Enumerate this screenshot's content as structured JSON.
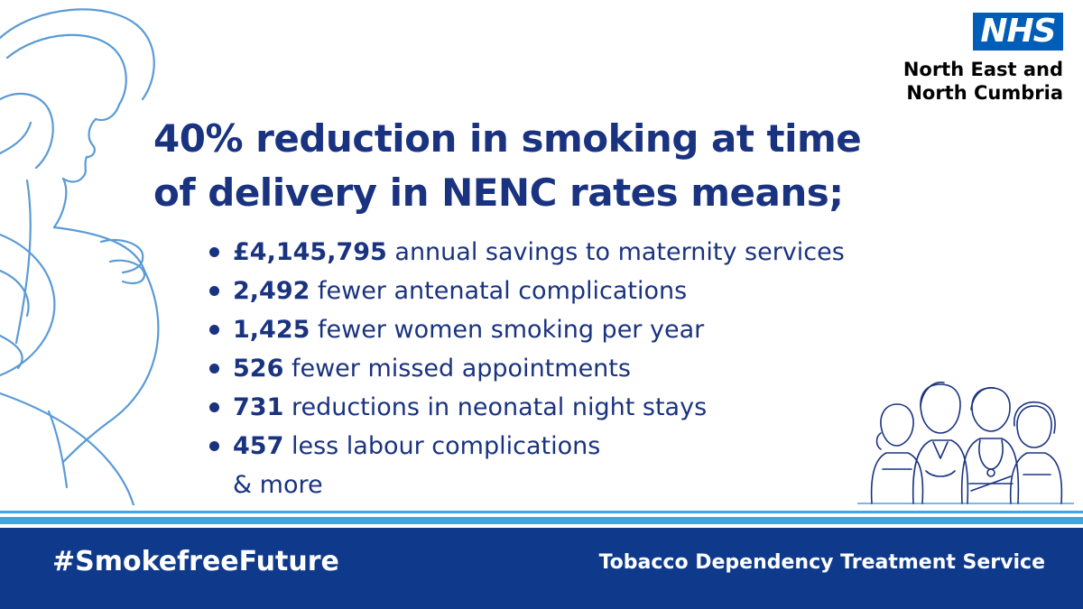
{
  "logo": {
    "nhs_text": "NHS",
    "org_line_1": "North East and",
    "org_line_2": "North Cumbria"
  },
  "headline": {
    "line_1": "40% reduction in smoking at time",
    "line_2": "of delivery in NENC rates means;"
  },
  "stats": [
    {
      "value": "£4,145,795",
      "text": " annual savings to maternity services"
    },
    {
      "value": "2,492",
      "text": " fewer antenatal complications"
    },
    {
      "value": "1,425",
      "text": " fewer women smoking per year"
    },
    {
      "value": "526",
      "text": " fewer missed appointments"
    },
    {
      "value": "731",
      "text": " reductions in neonatal night stays"
    },
    {
      "value": "457",
      "text": " less labour complications"
    }
  ],
  "stats_more": "& more",
  "footer": {
    "hashtag": "#SmokefreeFuture",
    "service": "Tobacco Dependency Treatment Service"
  },
  "colors": {
    "navy_text": "#1a3380",
    "nhs_blue": "#005eb8",
    "light_blue_line": "#41a6e0",
    "footer_bg": "#0f3a8c",
    "illustration_stroke": "#5b9bd5"
  },
  "illustrations": {
    "left": "pregnant-woman-line-art",
    "right": "healthcare-staff-line-art"
  }
}
